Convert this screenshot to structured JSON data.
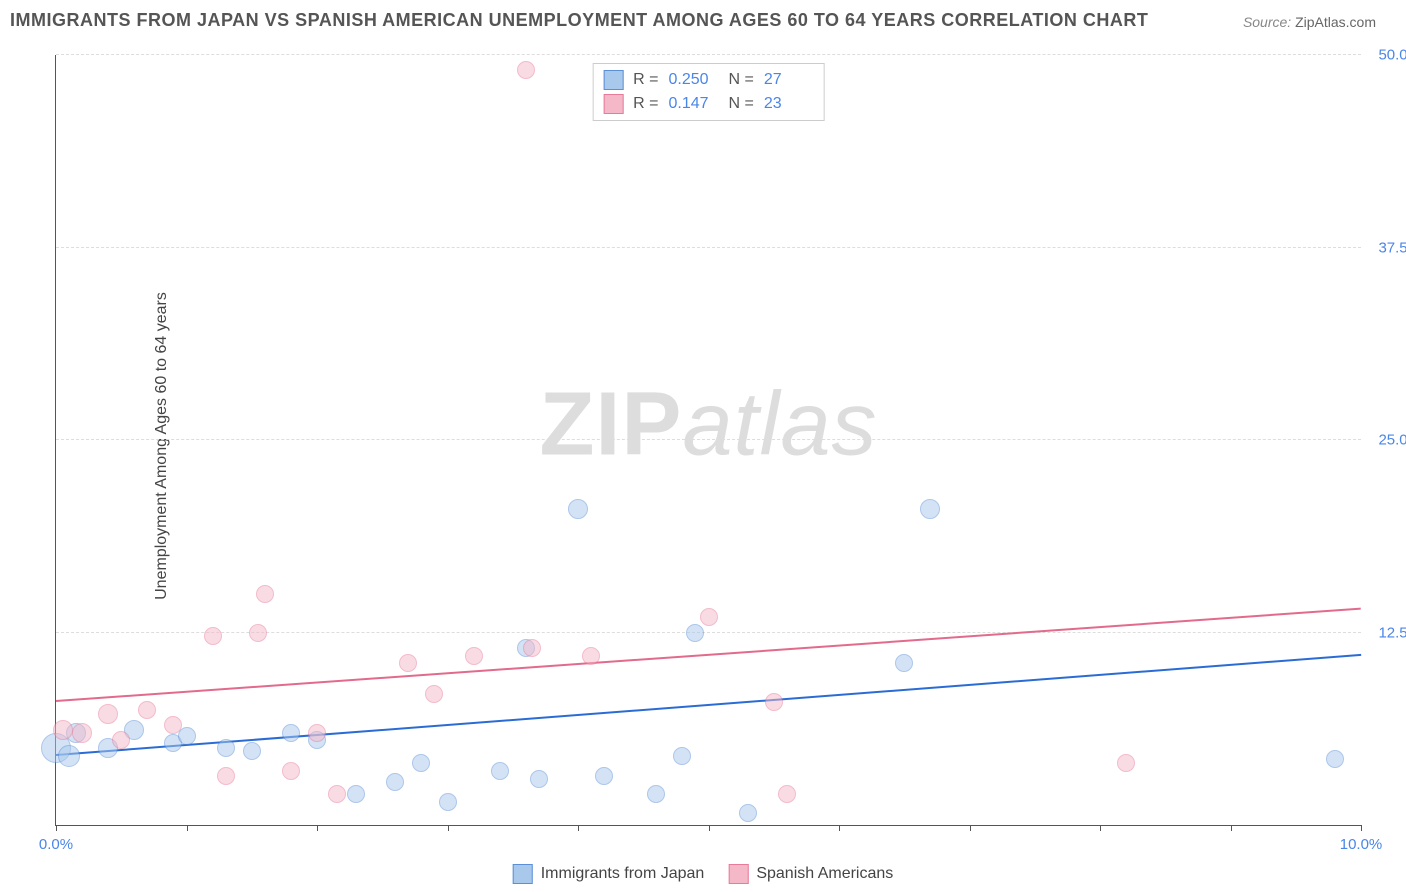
{
  "title": "IMMIGRANTS FROM JAPAN VS SPANISH AMERICAN UNEMPLOYMENT AMONG AGES 60 TO 64 YEARS CORRELATION CHART",
  "source_label": "Source:",
  "source_value": "ZipAtlas.com",
  "y_axis_label": "Unemployment Among Ages 60 to 64 years",
  "watermark_zip": "ZIP",
  "watermark_atlas": "atlas",
  "chart": {
    "type": "scatter",
    "xlim": [
      0,
      10
    ],
    "ylim": [
      0,
      50
    ],
    "x_ticks": [
      0,
      1,
      2,
      3,
      4,
      5,
      6,
      7,
      8,
      9,
      10
    ],
    "x_tick_labels": {
      "0": "0.0%",
      "10": "10.0%"
    },
    "y_ticks": [
      12.5,
      25.0,
      37.5,
      50.0
    ],
    "y_tick_labels": [
      "12.5%",
      "25.0%",
      "37.5%",
      "50.0%"
    ],
    "grid_color": "#dddddd",
    "background_color": "#ffffff",
    "axis_color": "#555555",
    "tick_label_color": "#4a86e8",
    "series": [
      {
        "name": "Immigrants from Japan",
        "fill_color": "#a8c8ec",
        "border_color": "#5b8fd6",
        "fill_opacity": 0.5,
        "marker_radius": 8,
        "trend": {
          "y_at_xmin": 4.5,
          "y_at_xmax": 11.0,
          "color": "#2b6cd4",
          "width": 2
        },
        "r_value": "0.250",
        "n_value": "27",
        "points": [
          {
            "x": 0.0,
            "y": 5.0,
            "r": 14
          },
          {
            "x": 0.1,
            "y": 4.5,
            "r": 10
          },
          {
            "x": 0.15,
            "y": 6.0,
            "r": 9
          },
          {
            "x": 0.4,
            "y": 5.0,
            "r": 9
          },
          {
            "x": 0.6,
            "y": 6.2,
            "r": 9
          },
          {
            "x": 0.9,
            "y": 5.3,
            "r": 8
          },
          {
            "x": 1.0,
            "y": 5.8,
            "r": 8
          },
          {
            "x": 1.3,
            "y": 5.0,
            "r": 8
          },
          {
            "x": 1.5,
            "y": 4.8,
            "r": 8
          },
          {
            "x": 1.8,
            "y": 6.0,
            "r": 8
          },
          {
            "x": 2.0,
            "y": 5.5,
            "r": 8
          },
          {
            "x": 2.3,
            "y": 2.0,
            "r": 8
          },
          {
            "x": 2.6,
            "y": 2.8,
            "r": 8
          },
          {
            "x": 2.8,
            "y": 4.0,
            "r": 8
          },
          {
            "x": 3.0,
            "y": 1.5,
            "r": 8
          },
          {
            "x": 3.4,
            "y": 3.5,
            "r": 8
          },
          {
            "x": 3.6,
            "y": 11.5,
            "r": 8
          },
          {
            "x": 3.7,
            "y": 3.0,
            "r": 8
          },
          {
            "x": 4.0,
            "y": 20.5,
            "r": 9
          },
          {
            "x": 4.2,
            "y": 3.2,
            "r": 8
          },
          {
            "x": 4.6,
            "y": 2.0,
            "r": 8
          },
          {
            "x": 4.8,
            "y": 4.5,
            "r": 8
          },
          {
            "x": 4.9,
            "y": 12.5,
            "r": 8
          },
          {
            "x": 5.3,
            "y": 0.8,
            "r": 8
          },
          {
            "x": 6.7,
            "y": 20.5,
            "r": 9
          },
          {
            "x": 6.5,
            "y": 10.5,
            "r": 8
          },
          {
            "x": 9.8,
            "y": 4.3,
            "r": 8
          }
        ]
      },
      {
        "name": "Spanish Americans",
        "fill_color": "#f5b8c8",
        "border_color": "#e87a9a",
        "fill_opacity": 0.5,
        "marker_radius": 8,
        "trend": {
          "y_at_xmin": 8.0,
          "y_at_xmax": 14.0,
          "color": "#e26a8c",
          "width": 2
        },
        "r_value": "0.147",
        "n_value": "23",
        "points": [
          {
            "x": 0.05,
            "y": 6.2,
            "r": 9
          },
          {
            "x": 0.2,
            "y": 6.0,
            "r": 9
          },
          {
            "x": 0.4,
            "y": 7.2,
            "r": 9
          },
          {
            "x": 0.5,
            "y": 5.5,
            "r": 8
          },
          {
            "x": 0.7,
            "y": 7.5,
            "r": 8
          },
          {
            "x": 0.9,
            "y": 6.5,
            "r": 8
          },
          {
            "x": 1.2,
            "y": 12.3,
            "r": 8
          },
          {
            "x": 1.3,
            "y": 3.2,
            "r": 8
          },
          {
            "x": 1.55,
            "y": 12.5,
            "r": 8
          },
          {
            "x": 1.6,
            "y": 15.0,
            "r": 8
          },
          {
            "x": 1.8,
            "y": 3.5,
            "r": 8
          },
          {
            "x": 2.0,
            "y": 6.0,
            "r": 8
          },
          {
            "x": 2.15,
            "y": 2.0,
            "r": 8
          },
          {
            "x": 2.7,
            "y": 10.5,
            "r": 8
          },
          {
            "x": 2.9,
            "y": 8.5,
            "r": 8
          },
          {
            "x": 3.2,
            "y": 11.0,
            "r": 8
          },
          {
            "x": 3.6,
            "y": 49.0,
            "r": 8
          },
          {
            "x": 3.65,
            "y": 11.5,
            "r": 8
          },
          {
            "x": 4.1,
            "y": 11.0,
            "r": 8
          },
          {
            "x": 5.0,
            "y": 13.5,
            "r": 8
          },
          {
            "x": 5.5,
            "y": 8.0,
            "r": 8
          },
          {
            "x": 5.6,
            "y": 2.0,
            "r": 8
          },
          {
            "x": 8.2,
            "y": 4.0,
            "r": 8
          }
        ]
      }
    ]
  },
  "legend_top": {
    "r_label": "R =",
    "n_label": "N ="
  },
  "legend_bottom": {
    "items": [
      "Immigrants from Japan",
      "Spanish Americans"
    ]
  }
}
